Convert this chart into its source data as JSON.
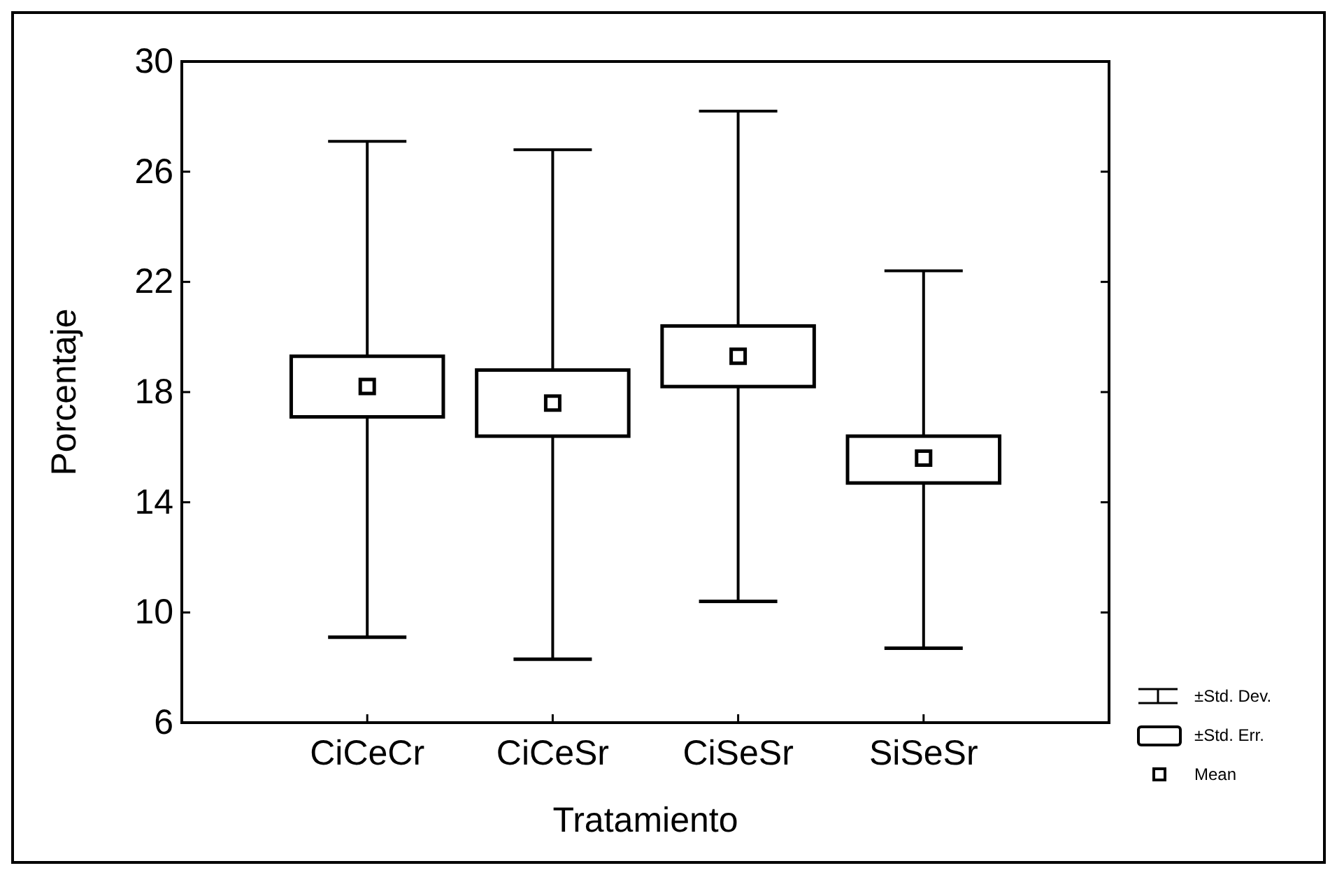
{
  "chart_data": {
    "type": "box",
    "xlabel": "Tratamiento",
    "ylabel": "Porcentaje",
    "categories": [
      "CiCeCr",
      "CiCeSr",
      "CiSeSr",
      "SiSeSr"
    ],
    "boxes": [
      {
        "low": 9.1,
        "q1": 17.1,
        "q3": 19.3,
        "high": 27.1,
        "mean": 18.2
      },
      {
        "low": 8.3,
        "q1": 16.4,
        "q3": 18.8,
        "high": 26.8,
        "mean": 17.6
      },
      {
        "low": 10.4,
        "q1": 18.2,
        "q3": 20.4,
        "high": 28.2,
        "mean": 19.3
      },
      {
        "low": 8.7,
        "q1": 14.7,
        "q3": 16.4,
        "high": 22.4,
        "mean": 15.6
      }
    ],
    "ylim": [
      6,
      30
    ],
    "yticks": [
      6,
      10,
      14,
      18,
      22,
      26,
      30
    ],
    "annotations": [
      "±Std. Dev.",
      "±Std. Err.",
      "Mean"
    ]
  }
}
